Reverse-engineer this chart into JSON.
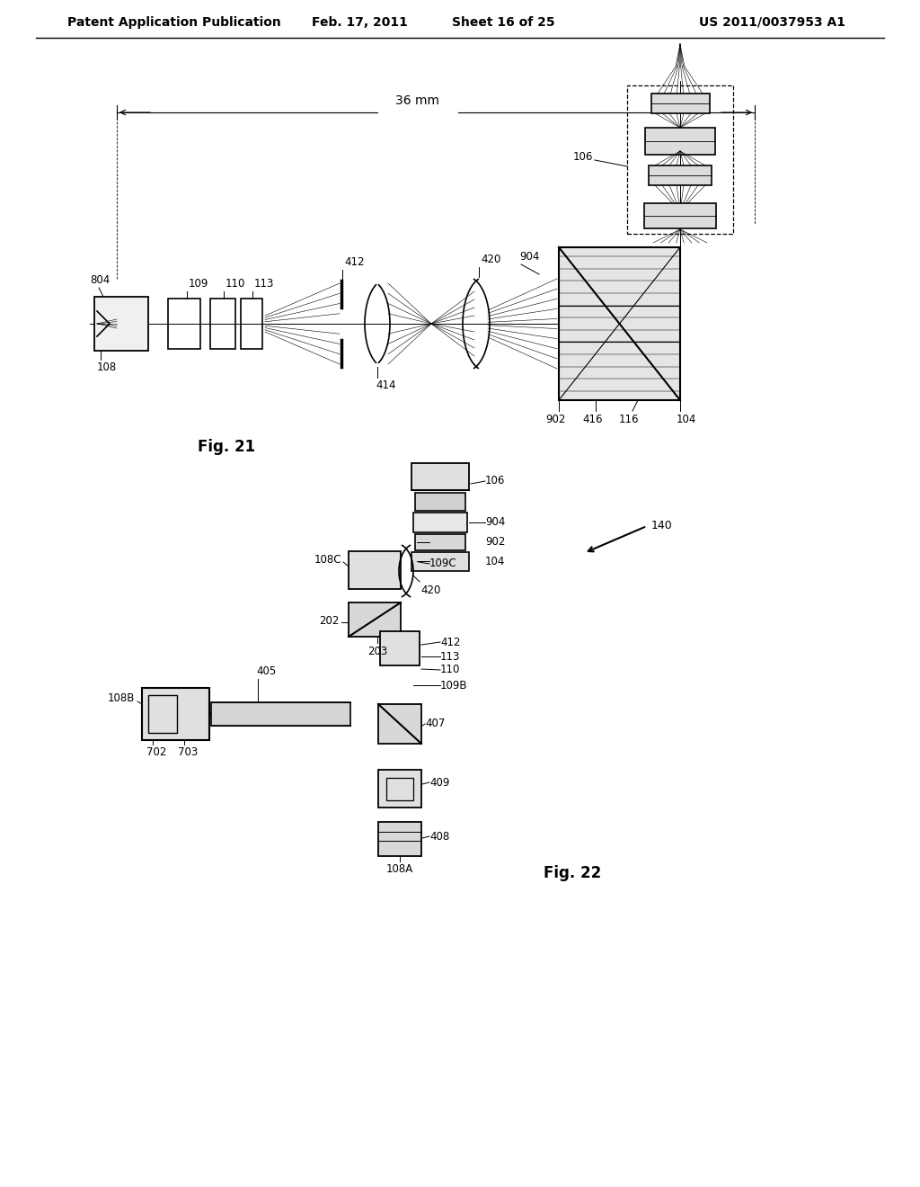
{
  "bg_color": "#ffffff",
  "header_text": "Patent Application Publication",
  "header_date": "Feb. 17, 2011",
  "header_sheet": "Sheet 16 of 25",
  "header_patent": "US 2011/0037953 A1",
  "fig21_label": "Fig. 21",
  "fig22_label": "Fig. 22",
  "fig21_dim_label": "36 mm",
  "text_color": "#000000",
  "line_color": "#000000",
  "dashed_color": "#555555"
}
